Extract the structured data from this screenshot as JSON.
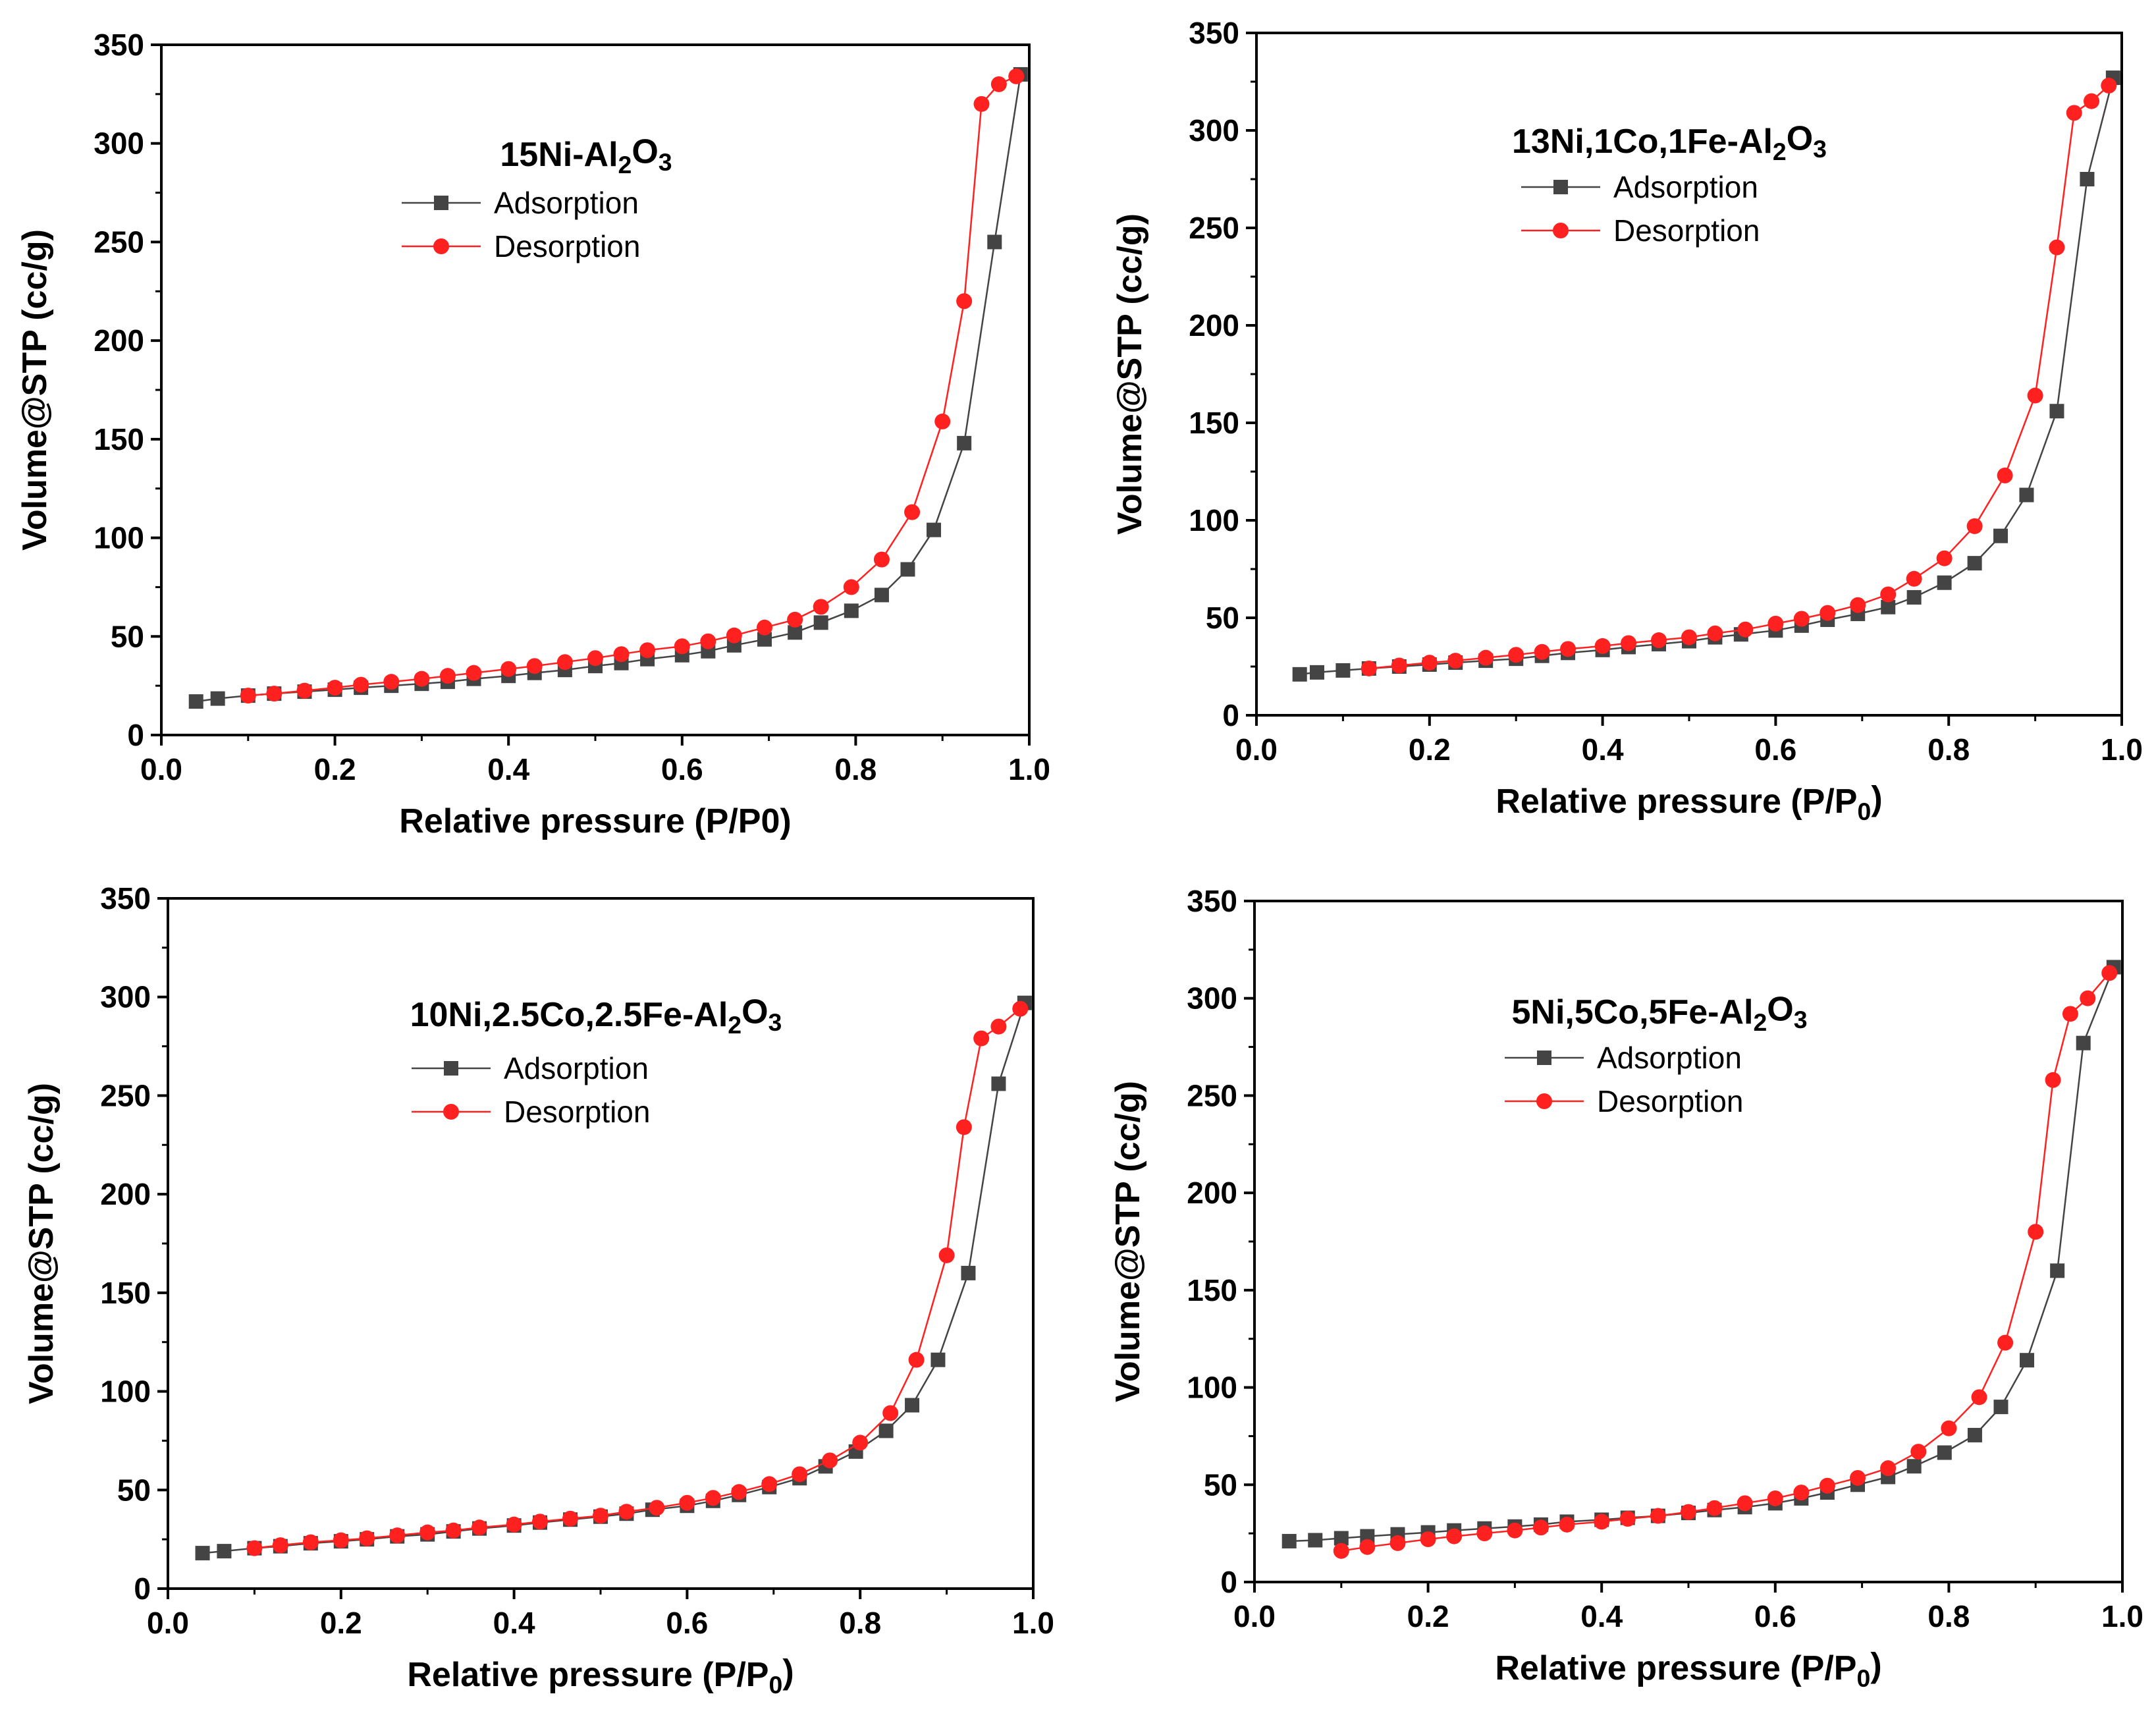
{
  "colors": {
    "adsorption": "#444444",
    "desorption": "#ff2020",
    "axis": "#000000"
  },
  "chart_data": [
    {
      "type": "line",
      "title": "15Ni-Al2O3",
      "title_parts": [
        {
          "t": "15Ni-Al",
          "sub": false
        },
        {
          "t": "2",
          "sub": true
        },
        {
          "t": "O",
          "sub": false
        },
        {
          "t": "3",
          "sub": true
        }
      ],
      "xlabel": "Relative pressure (P/P0)",
      "xlabel_parts": [
        {
          "t": "Relative pressure (P/P0)",
          "sub": false
        }
      ],
      "ylabel": "Volume@STP (cc/g)",
      "xlim": [
        0,
        1.0
      ],
      "ylim": [
        0,
        350
      ],
      "xticks": [
        "0.0",
        "0.2",
        "0.4",
        "0.6",
        "0.8",
        "1.0"
      ],
      "yticks": [
        "0",
        "50",
        "100",
        "150",
        "200",
        "250",
        "300",
        "350"
      ],
      "legend": "upper-center",
      "series": [
        {
          "name": "Adsorption",
          "marker": "square",
          "x": [
            0.04,
            0.065,
            0.1,
            0.13,
            0.165,
            0.2,
            0.23,
            0.265,
            0.3,
            0.33,
            0.36,
            0.4,
            0.43,
            0.465,
            0.5,
            0.53,
            0.56,
            0.6,
            0.63,
            0.66,
            0.695,
            0.73,
            0.76,
            0.795,
            0.83,
            0.86,
            0.89,
            0.925,
            0.96,
            0.99
          ],
          "y": [
            17,
            18.5,
            20,
            21,
            22,
            23,
            24,
            25,
            26,
            27,
            28.5,
            30,
            31.5,
            33,
            35,
            36.5,
            38.5,
            40.5,
            42.5,
            45.5,
            48.5,
            52,
            57,
            63,
            71,
            84,
            104,
            148,
            250,
            335
          ]
        },
        {
          "name": "Desorption",
          "marker": "circle",
          "x": [
            0.1,
            0.13,
            0.165,
            0.2,
            0.23,
            0.265,
            0.3,
            0.33,
            0.36,
            0.4,
            0.43,
            0.465,
            0.5,
            0.53,
            0.56,
            0.6,
            0.63,
            0.66,
            0.695,
            0.73,
            0.76,
            0.795,
            0.83,
            0.865,
            0.9,
            0.925,
            0.945,
            0.965,
            0.985
          ],
          "y": [
            20,
            21,
            22.5,
            24,
            25.5,
            27,
            28.5,
            30,
            31.5,
            33.5,
            35,
            37,
            39,
            41,
            43,
            45,
            47.5,
            50.5,
            54.5,
            58.5,
            65,
            75,
            89,
            113,
            159,
            220,
            320,
            330,
            334
          ]
        }
      ]
    },
    {
      "type": "line",
      "title": "13Ni,1Co,1Fe-Al2O3",
      "title_parts": [
        {
          "t": "13Ni,1Co,1Fe-Al",
          "sub": false
        },
        {
          "t": "2",
          "sub": true
        },
        {
          "t": "O",
          "sub": false
        },
        {
          "t": "3",
          "sub": true
        }
      ],
      "xlabel": "Relative pressure (P/P0)",
      "xlabel_parts": [
        {
          "t": "Relative pressure (P/P",
          "sub": false
        },
        {
          "t": "0",
          "sub": true
        },
        {
          "t": ")",
          "sub": false
        }
      ],
      "ylabel": "Volume@STP (cc/g)",
      "xlim": [
        0,
        1.0
      ],
      "ylim": [
        0,
        350
      ],
      "xticks": [
        "0.0",
        "0.2",
        "0.4",
        "0.6",
        "0.8",
        "1.0"
      ],
      "yticks": [
        "0",
        "50",
        "100",
        "150",
        "200",
        "250",
        "300",
        "350"
      ],
      "legend": "upper-center",
      "series": [
        {
          "name": "Adsorption",
          "marker": "square",
          "x": [
            0.05,
            0.07,
            0.1,
            0.13,
            0.165,
            0.2,
            0.23,
            0.265,
            0.3,
            0.33,
            0.36,
            0.4,
            0.43,
            0.465,
            0.5,
            0.53,
            0.56,
            0.6,
            0.63,
            0.66,
            0.695,
            0.73,
            0.76,
            0.795,
            0.83,
            0.86,
            0.89,
            0.925,
            0.96,
            0.99
          ],
          "y": [
            21,
            22,
            23,
            24,
            25,
            26,
            27,
            28,
            29,
            30.5,
            32,
            33.5,
            35,
            36.5,
            38,
            40,
            41.5,
            43.5,
            46,
            49,
            52,
            55.5,
            60.5,
            68,
            78,
            92,
            113,
            156,
            275,
            327
          ]
        },
        {
          "name": "Desorption",
          "marker": "circle",
          "x": [
            0.13,
            0.165,
            0.2,
            0.23,
            0.265,
            0.3,
            0.33,
            0.36,
            0.4,
            0.43,
            0.465,
            0.5,
            0.53,
            0.565,
            0.6,
            0.63,
            0.66,
            0.695,
            0.73,
            0.76,
            0.795,
            0.83,
            0.865,
            0.9,
            0.925,
            0.945,
            0.965,
            0.985
          ],
          "y": [
            24,
            25.5,
            27,
            28,
            29.5,
            31,
            32.5,
            34,
            35.5,
            37,
            38.5,
            40,
            42,
            44,
            47,
            49.5,
            52.5,
            56.5,
            62,
            70,
            80.5,
            97,
            123,
            164,
            240,
            309,
            315,
            323
          ]
        }
      ]
    },
    {
      "type": "line",
      "title": "10Ni,2.5Co,2.5Fe-Al2O3",
      "title_parts": [
        {
          "t": "10Ni,2.5Co,2.5Fe-Al",
          "sub": false
        },
        {
          "t": "2",
          "sub": true
        },
        {
          "t": "O",
          "sub": false
        },
        {
          "t": "3",
          "sub": true
        }
      ],
      "xlabel": "Relative pressure (P/P0)",
      "xlabel_parts": [
        {
          "t": "Relative pressure (P/P",
          "sub": false
        },
        {
          "t": "0",
          "sub": true
        },
        {
          "t": ")",
          "sub": false
        }
      ],
      "ylabel": "Volume@STP (cc/g)",
      "xlim": [
        0,
        1.0
      ],
      "ylim": [
        0,
        350
      ],
      "xticks": [
        "0.0",
        "0.2",
        "0.4",
        "0.6",
        "0.8",
        "1.0"
      ],
      "yticks": [
        "0",
        "50",
        "100",
        "150",
        "200",
        "250",
        "300",
        "350"
      ],
      "legend": "upper-center",
      "series": [
        {
          "name": "Adsorption",
          "marker": "square",
          "x": [
            0.04,
            0.065,
            0.1,
            0.13,
            0.165,
            0.2,
            0.23,
            0.265,
            0.3,
            0.33,
            0.36,
            0.4,
            0.43,
            0.465,
            0.5,
            0.53,
            0.56,
            0.6,
            0.63,
            0.66,
            0.695,
            0.73,
            0.76,
            0.795,
            0.83,
            0.86,
            0.89,
            0.925,
            0.96,
            0.99
          ],
          "y": [
            18,
            19,
            20.5,
            21.5,
            23,
            24,
            25,
            26.5,
            27.5,
            29,
            30.5,
            32,
            33.5,
            35,
            36.5,
            38,
            40,
            42,
            44.5,
            47.5,
            51.5,
            56,
            62,
            69.5,
            80,
            93,
            116,
            160,
            256,
            297
          ]
        },
        {
          "name": "Desorption",
          "marker": "circle",
          "x": [
            0.1,
            0.13,
            0.165,
            0.2,
            0.23,
            0.265,
            0.3,
            0.33,
            0.36,
            0.4,
            0.43,
            0.465,
            0.5,
            0.53,
            0.565,
            0.6,
            0.63,
            0.66,
            0.695,
            0.73,
            0.765,
            0.8,
            0.835,
            0.865,
            0.9,
            0.92,
            0.94,
            0.96,
            0.985
          ],
          "y": [
            20.5,
            22,
            23.5,
            24.5,
            25.5,
            27,
            28.5,
            29.5,
            31,
            32.5,
            34,
            35.5,
            37,
            39,
            41,
            43.5,
            46,
            49,
            53,
            58,
            65,
            74,
            89,
            116,
            169,
            234,
            279,
            285,
            294
          ]
        }
      ]
    },
    {
      "type": "line",
      "title": "5Ni,5Co,5Fe-Al2O3",
      "title_parts": [
        {
          "t": "5Ni,5Co,5Fe-Al",
          "sub": false
        },
        {
          "t": "2",
          "sub": true
        },
        {
          "t": "O",
          "sub": false
        },
        {
          "t": "3",
          "sub": true
        }
      ],
      "xlabel": "Relative pressure (P/P0)",
      "xlabel_parts": [
        {
          "t": "Relative pressure (P/P",
          "sub": false
        },
        {
          "t": "0",
          "sub": true
        },
        {
          "t": ")",
          "sub": false
        }
      ],
      "ylabel": "Volume@STP (cc/g)",
      "xlim": [
        0,
        1.0
      ],
      "ylim": [
        0,
        350
      ],
      "xticks": [
        "0.0",
        "0.2",
        "0.4",
        "0.6",
        "0.8",
        "1.0"
      ],
      "yticks": [
        "0",
        "50",
        "100",
        "150",
        "200",
        "250",
        "300",
        "350"
      ],
      "legend": "upper-center",
      "series": [
        {
          "name": "Adsorption",
          "marker": "square",
          "x": [
            0.04,
            0.07,
            0.1,
            0.13,
            0.165,
            0.2,
            0.23,
            0.265,
            0.3,
            0.33,
            0.36,
            0.4,
            0.43,
            0.465,
            0.5,
            0.53,
            0.565,
            0.6,
            0.63,
            0.66,
            0.695,
            0.73,
            0.76,
            0.795,
            0.83,
            0.86,
            0.89,
            0.925,
            0.955,
            0.99
          ],
          "y": [
            21,
            21.5,
            22.5,
            23.5,
            24.5,
            25.5,
            26.5,
            27.5,
            28.5,
            29.5,
            31,
            32,
            33,
            34,
            35.5,
            37,
            38.5,
            40.5,
            43,
            46,
            50,
            54,
            59.5,
            66.5,
            75.5,
            90,
            114,
            160,
            277,
            316
          ]
        },
        {
          "name": "Desorption",
          "marker": "circle",
          "x": [
            0.1,
            0.13,
            0.165,
            0.2,
            0.23,
            0.265,
            0.3,
            0.33,
            0.36,
            0.4,
            0.43,
            0.465,
            0.5,
            0.53,
            0.565,
            0.6,
            0.63,
            0.66,
            0.695,
            0.73,
            0.765,
            0.8,
            0.835,
            0.865,
            0.9,
            0.92,
            0.94,
            0.96,
            0.985
          ],
          "y": [
            16,
            18,
            20,
            22,
            23.5,
            25,
            26.5,
            28,
            29.5,
            31,
            32.5,
            34,
            36,
            38,
            40.5,
            43,
            46,
            49.5,
            53.5,
            58.5,
            67,
            79,
            95,
            123,
            180,
            258,
            292,
            300,
            313
          ]
        }
      ]
    }
  ]
}
